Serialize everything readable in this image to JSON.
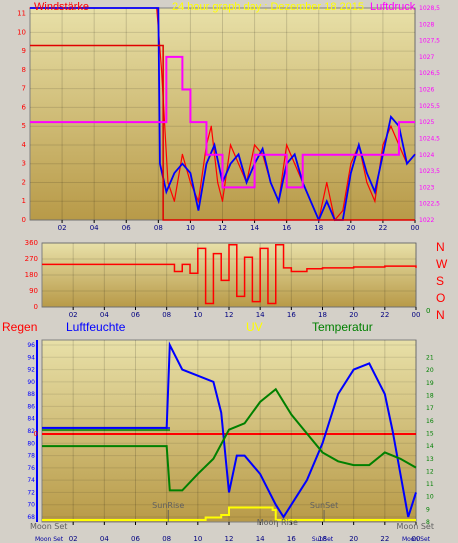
{
  "top_chart": {
    "left_label": "Windstärke",
    "title": "24 hour graph day : Dezember 18 2015",
    "right_label": "Luftdruck",
    "y_ticks": [
      "0",
      "1",
      "2",
      "3",
      "4",
      "5",
      "6",
      "7",
      "8",
      "9",
      "10",
      "11"
    ],
    "y2_ticks": [
      "1022",
      "1022,5",
      "1023",
      "1023,5",
      "1024",
      "1024,5",
      "1025",
      "1025,5",
      "1026",
      "1026,5",
      "1027",
      "1027,5",
      "1028",
      "1028,5"
    ],
    "x_ticks": [
      "02",
      "04",
      "06",
      "08",
      "10",
      "12",
      "14",
      "16",
      "18",
      "20",
      "22",
      "00"
    ]
  },
  "mid_chart": {
    "y_ticks": [
      "0",
      "90",
      "180",
      "270",
      "360"
    ],
    "compass": [
      "N",
      "W",
      "S",
      "O",
      "N"
    ],
    "x_ticks": [
      "02",
      "04",
      "06",
      "08",
      "10",
      "12",
      "14",
      "16",
      "18",
      "20",
      "22",
      "00"
    ]
  },
  "bottom_chart": {
    "labels": {
      "rain": "Regen",
      "humidity": "Luftfeuchte",
      "uv": "UV",
      "temp": "Temperatur"
    },
    "rain_zero": "0",
    "humidity_ticks": [
      "68",
      "70",
      "72",
      "74",
      "76",
      "78",
      "80",
      "82",
      "84",
      "86",
      "88",
      "90",
      "92",
      "94",
      "96"
    ],
    "temp_ticks": [
      "8",
      "9",
      "10",
      "11",
      "12",
      "13",
      "14",
      "15",
      "16",
      "17",
      "18",
      "19",
      "20",
      "21"
    ],
    "right_zero": "0",
    "x_ticks": [
      "02",
      "04",
      "06",
      "08",
      "10",
      "12",
      "14",
      "16",
      "18",
      "20",
      "22",
      "00"
    ],
    "events": {
      "moonset_left": "Moon Set",
      "sunrise": "SunRise",
      "moonrise": "Moon Rise",
      "sunset": "SunSet",
      "moonset_right": "Moon Set"
    },
    "bottom_labels": {
      "moonset": "Moon Set",
      "sunset": "SunSet"
    }
  },
  "chart_data": [
    {
      "type": "line",
      "title": "24 hour graph day : Dezember 18 2015",
      "series": [
        {
          "name": "Windstärke",
          "axis": "left",
          "x": [
            0,
            7.9,
            8.2,
            8.6,
            9,
            9.5,
            10,
            10.5,
            11,
            11.3,
            11.7,
            12,
            12.5,
            13,
            13.5,
            14,
            14.5,
            15,
            15.5,
            16,
            16.5,
            17,
            17.5,
            18,
            18.5,
            19,
            19.5,
            20,
            20.5,
            21,
            21.5,
            22,
            22.5,
            23,
            23.5,
            24
          ],
          "y": [
            11.3,
            11.3,
            8,
            2,
            1,
            3.5,
            2,
            1,
            4,
            5,
            2,
            1,
            4,
            3,
            2,
            4,
            3.5,
            2,
            1,
            4,
            3,
            2,
            1,
            0,
            2,
            0,
            0.5,
            3,
            4,
            2,
            1,
            4,
            5,
            4,
            3,
            3.5
          ]
        },
        {
          "name": "Windstärke avg",
          "axis": "left",
          "x": [
            0,
            8,
            8.3,
            24
          ],
          "y": [
            9.3,
            9.3,
            0,
            0
          ]
        },
        {
          "name": "Luftdruck",
          "axis": "right",
          "x": [
            0,
            8,
            8.5,
            9.5,
            10,
            11,
            12,
            13,
            14,
            15,
            16,
            17,
            18,
            19,
            20,
            21,
            22,
            23,
            24
          ],
          "y": [
            1025,
            1025,
            1027,
            1026,
            1025,
            1024,
            1023,
            1023,
            1024,
            1024,
            1023,
            1024,
            1024,
            1024,
            1024,
            1024,
            1024,
            1025,
            1025
          ]
        }
      ]
    },
    {
      "type": "line",
      "series": [
        {
          "name": "Windrichtung",
          "x": [
            0,
            8,
            8.5,
            9,
            9.5,
            10,
            10.5,
            11,
            11.5,
            12,
            12.5,
            13,
            13.5,
            14,
            14.5,
            15,
            15.5,
            16,
            17,
            18,
            20,
            22,
            24
          ],
          "y": [
            240,
            240,
            200,
            240,
            190,
            330,
            20,
            300,
            150,
            350,
            60,
            280,
            30,
            330,
            20,
            350,
            220,
            200,
            215,
            220,
            225,
            230,
            220
          ]
        }
      ],
      "ylim": [
        0,
        360
      ]
    },
    {
      "type": "line",
      "series": [
        {
          "name": "Luftfeuchte",
          "x": [
            0,
            8,
            8.2,
            9,
            10,
            11,
            11.5,
            12,
            12.5,
            13,
            14,
            15,
            15.5,
            16,
            17,
            18,
            19,
            20,
            21,
            22,
            22.5,
            23,
            23.5,
            24
          ],
          "y": [
            82.5,
            82.5,
            96,
            92,
            91,
            90,
            85,
            72,
            78,
            78,
            75,
            70,
            68,
            70,
            74,
            80,
            88,
            92,
            93,
            88,
            82,
            75,
            68,
            72
          ]
        },
        {
          "name": "Temperatur",
          "x": [
            0,
            8,
            8.2,
            9,
            10,
            11,
            12,
            13,
            14,
            15,
            16,
            17,
            18,
            19,
            20,
            21,
            22,
            23,
            24
          ],
          "y": [
            14,
            14,
            10.5,
            10.5,
            11.8,
            13,
            15.3,
            15.8,
            17.5,
            18.5,
            16.5,
            15,
            13.5,
            12.8,
            12.5,
            12.5,
            13.5,
            13,
            12.3
          ]
        },
        {
          "name": "UV",
          "x": [
            0,
            10.3,
            10.5,
            11.5,
            12,
            14.8,
            15,
            24
          ],
          "y": [
            0,
            0,
            0.5,
            1,
            2.5,
            2,
            0,
            0
          ]
        },
        {
          "name": "Regen",
          "x": [
            0,
            24
          ],
          "y": [
            0,
            0
          ]
        }
      ]
    }
  ]
}
